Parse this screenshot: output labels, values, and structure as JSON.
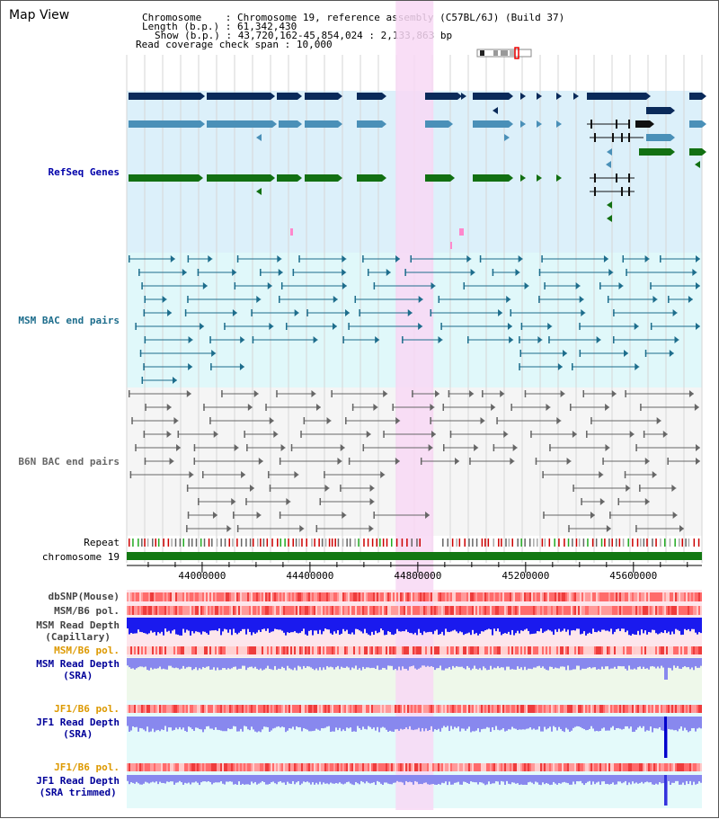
{
  "title": "Map View",
  "header": {
    "chromosome_label": "Chromosome",
    "chromosome_value": "Chromosome 19, reference assembly (C57BL/6J) (Build 37)",
    "length_label": "Length (b.p.)",
    "length_value": "61,342,430",
    "show_label": "Show (b.p.)",
    "show_value": "43,720,162-45,854,024 : 2,133,863 bp",
    "coverage_label": "Read coverage check span",
    "coverage_value": "10,000"
  },
  "tracks": {
    "refseq": {
      "label": "RefSeq Genes",
      "color": "#0000aa"
    },
    "msm_bac": {
      "label": "MSM BAC end pairs",
      "color": "#1d6d8c"
    },
    "b6n_bac": {
      "label": "B6N BAC end pairs",
      "color": "#666666"
    },
    "repeat": {
      "label": "Repeat",
      "color": "#000000"
    },
    "chromosome": {
      "label": "chromosome 19",
      "color": "#000000"
    },
    "dbsnp": {
      "label": "dbSNP(Mouse)",
      "color": "#444444"
    },
    "msm_b6_pol_1": {
      "label": "MSM/B6 pol.",
      "color": "#444444"
    },
    "msm_depth_cap": {
      "label": "MSM Read Depth",
      "label2": "(Capillary)",
      "color": "#444444"
    },
    "msm_b6_pol_2": {
      "label": "MSM/B6 pol.",
      "color": "#dd9900"
    },
    "msm_depth_sra": {
      "label": "MSM Read Depth",
      "label2": "(SRA)",
      "color": "#000099"
    },
    "jf1_b6_pol_1": {
      "label": "JF1/B6 pol.",
      "color": "#dd9900"
    },
    "jf1_depth_sra": {
      "label": "JF1 Read Depth",
      "label2": "(SRA)",
      "color": "#000099"
    },
    "jf1_b6_pol_2": {
      "label": "JF1/B6 pol.",
      "color": "#dd9900"
    },
    "jf1_depth_trim": {
      "label": "JF1 Read Depth",
      "label2": "(SRA trimmed)",
      "color": "#000099"
    }
  },
  "axis": {
    "start": 43720162,
    "end": 45854024,
    "ticks": [
      {
        "value": 44000000,
        "label": "44000000"
      },
      {
        "value": 44400000,
        "label": "44400000"
      },
      {
        "value": 44800000,
        "label": "44800000"
      },
      {
        "value": 45200000,
        "label": "45200000"
      },
      {
        "value": 45600000,
        "label": "45600000"
      }
    ]
  },
  "highlight": {
    "start": 44718000,
    "end": 44858000
  },
  "colors": {
    "refseq_bg": "#dcf0fa",
    "msm_bg": "#e0f8fa",
    "b6n_bg": "#f5f5f5",
    "highlight": "#f8d8f4",
    "gene_dark": "#0a2a5a",
    "gene_mid": "#4a90b8",
    "gene_green": "#127012",
    "msm_pair": "#1d6d8c",
    "b6n_pair": "#666666",
    "chromosome_bar": "#127812",
    "depth_cap": "#1a1aee",
    "depth_sra": "#8888ee",
    "pol_red": "#ee4444"
  }
}
